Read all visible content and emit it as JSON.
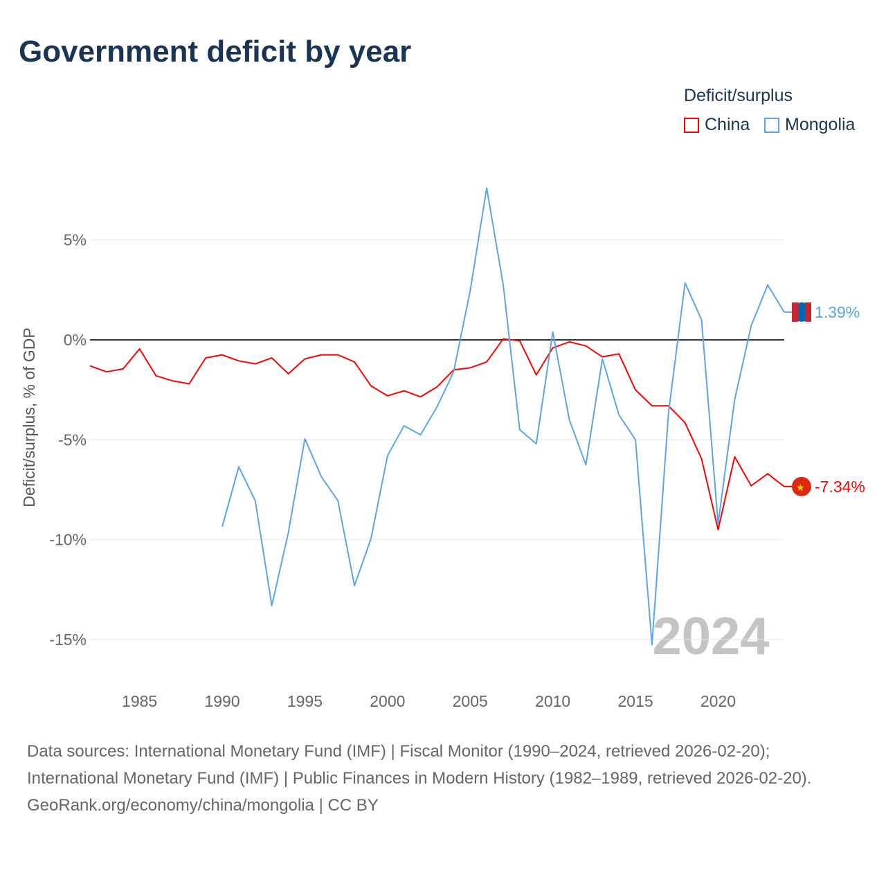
{
  "title": "Government deficit by year",
  "legend": {
    "title": "Deficit/surplus",
    "items": [
      {
        "label": "China",
        "color": "#ff0000"
      },
      {
        "label": "Mongolia",
        "color": "#5aa5ea"
      }
    ]
  },
  "watermark_year": "2024",
  "end_labels": {
    "china": "-7.34%",
    "mongolia": "1.39%"
  },
  "footer": {
    "sources": "Data sources: International Monetary Fund (IMF) | Fiscal Monitor (1990–2024, retrieved 2026-02-20); International Monetary Fund (IMF) | Public Finances in Modern History (1982–1989, retrieved 2026-02-20).",
    "credit": "GeoRank.org/economy/china/mongolia | CC BY"
  },
  "chart_data": {
    "type": "line",
    "title": "Government deficit by year",
    "xlabel": "",
    "ylabel": "Deficit/surplus, % of GDP",
    "xlim": [
      1982,
      2024
    ],
    "ylim": [
      -17,
      9
    ],
    "x_ticks": [
      1985,
      1990,
      1995,
      2000,
      2005,
      2010,
      2015,
      2020
    ],
    "y_ticks": [
      {
        "v": 5,
        "label": "5%"
      },
      {
        "v": 0,
        "label": "0%"
      },
      {
        "v": -5,
        "label": "-5%"
      },
      {
        "v": -10,
        "label": "-10%"
      },
      {
        "v": -15,
        "label": "-15%"
      }
    ],
    "series": [
      {
        "name": "China",
        "color": "#ff0000",
        "start": 1982,
        "values": [
          -1.3,
          -1.6,
          -1.45,
          -0.45,
          -1.8,
          -2.05,
          -2.2,
          -0.9,
          -0.75,
          -1.05,
          -1.2,
          -0.9,
          -1.7,
          -0.95,
          -0.75,
          -0.75,
          -1.1,
          -2.3,
          -2.8,
          -2.55,
          -2.85,
          -2.35,
          -1.5,
          -1.4,
          -1.1,
          0.05,
          -0.05,
          -1.75,
          -0.4,
          -0.1,
          -0.3,
          -0.85,
          -0.7,
          -2.5,
          -3.3,
          -3.3,
          -4.15,
          -5.95,
          -9.5,
          -5.85,
          -7.3,
          -6.7,
          -7.34
        ]
      },
      {
        "name": "Mongolia",
        "color": "#5aa5ea",
        "start": 1990,
        "values": [
          -9.35,
          -6.35,
          -8.05,
          -13.3,
          -9.65,
          -4.95,
          -6.85,
          -8.05,
          -12.3,
          -9.95,
          -5.8,
          -4.3,
          -4.75,
          -3.35,
          -1.6,
          2.45,
          7.6,
          2.75,
          -4.5,
          -5.2,
          0.4,
          -4.0,
          -6.25,
          -0.95,
          -3.75,
          -5.0,
          -15.25,
          -3.65,
          2.85,
          1.0,
          -9.2,
          -3.0,
          0.7,
          2.75,
          1.39
        ]
      }
    ]
  }
}
